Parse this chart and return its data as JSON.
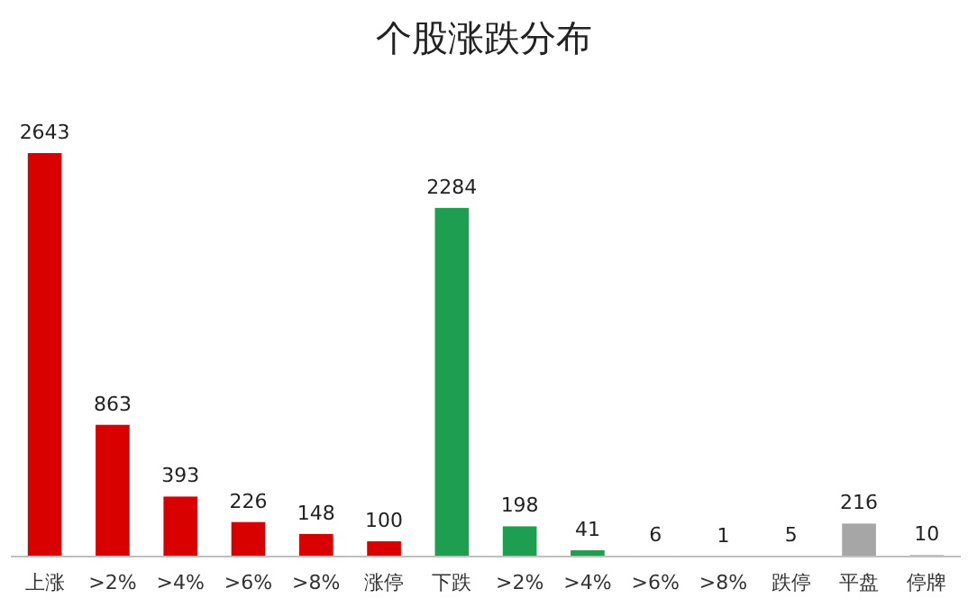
{
  "chart_data": {
    "type": "bar",
    "title": "个股涨跌分布",
    "categories": [
      "上涨",
      ">2%",
      ">4%",
      ">6%",
      ">8%",
      "涨停",
      "下跌",
      ">2%",
      ">4%",
      ">6%",
      ">8%",
      "跌停",
      "平盘",
      "停牌"
    ],
    "values": [
      2643,
      863,
      393,
      226,
      148,
      100,
      2284,
      198,
      41,
      6,
      1,
      5,
      216,
      10
    ],
    "colors": [
      "#d90000",
      "#d90000",
      "#d90000",
      "#d90000",
      "#d90000",
      "#d90000",
      "#1e9e50",
      "#1e9e50",
      "#1e9e50",
      "#1e9e50",
      "#1e9e50",
      "#1e9e50",
      "#a6a6a6",
      "#a6a6a6"
    ],
    "data_labels": true
  }
}
